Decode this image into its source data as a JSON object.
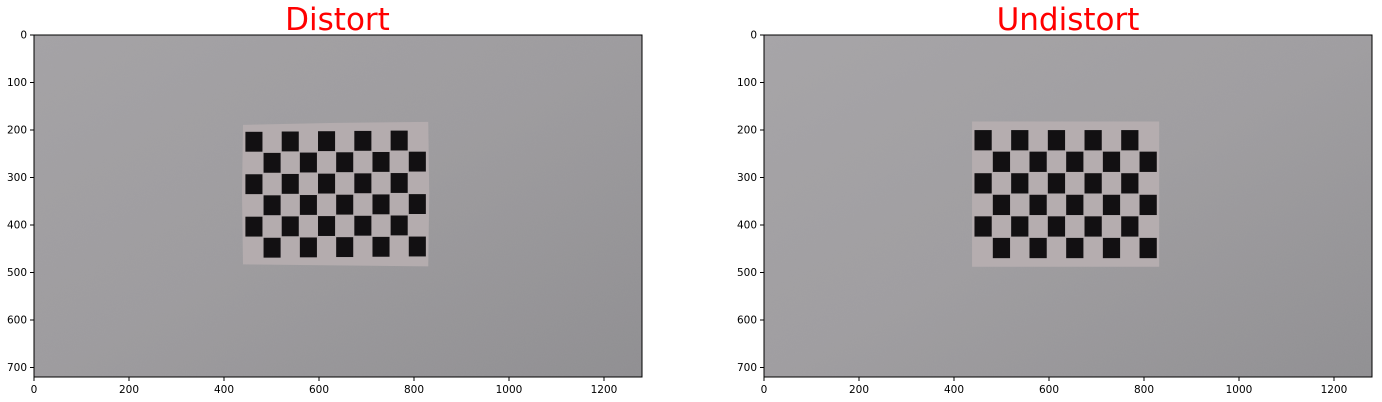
{
  "figure": {
    "panels": [
      {
        "id": "distort",
        "title": "Distort",
        "title_color": "#ff0000",
        "image_description_colors": {
          "wall": "#9f9fa1",
          "board_paper": "#b4acae",
          "squares": "#121012"
        },
        "checkerboard": {
          "rows": 6,
          "cols": 10
        },
        "x_axis": {
          "range": [
            0,
            1280
          ],
          "ticks": [
            0,
            200,
            400,
            600,
            800,
            1000,
            1200
          ],
          "tick_labels": [
            "0",
            "200",
            "400",
            "600",
            "800",
            "1000",
            "1200"
          ]
        },
        "y_axis": {
          "range": [
            0,
            720
          ],
          "inverted": true,
          "ticks": [
            0,
            100,
            200,
            300,
            400,
            500,
            600,
            700
          ],
          "tick_labels": [
            "0",
            "100",
            "200",
            "300",
            "400",
            "500",
            "600",
            "700"
          ]
        },
        "board_extent_data": {
          "x": [
            440,
            830
          ],
          "y": [
            185,
            485
          ]
        }
      },
      {
        "id": "undistort",
        "title": "Undistort",
        "title_color": "#ff0000",
        "image_description_colors": {
          "wall": "#a2a0a3",
          "board_paper": "#b5adaf",
          "squares": "#121012"
        },
        "checkerboard": {
          "rows": 6,
          "cols": 10
        },
        "x_axis": {
          "range": [
            0,
            1280
          ],
          "ticks": [
            0,
            200,
            400,
            600,
            800,
            1000,
            1200
          ],
          "tick_labels": [
            "0",
            "200",
            "400",
            "600",
            "800",
            "1000",
            "1200"
          ]
        },
        "y_axis": {
          "range": [
            0,
            720
          ],
          "inverted": true,
          "ticks": [
            0,
            100,
            200,
            300,
            400,
            500,
            600,
            700
          ],
          "tick_labels": [
            "0",
            "100",
            "200",
            "300",
            "400",
            "500",
            "600",
            "700"
          ]
        },
        "board_extent_data": {
          "x": [
            438,
            832
          ],
          "y": [
            182,
            488
          ]
        }
      }
    ]
  }
}
